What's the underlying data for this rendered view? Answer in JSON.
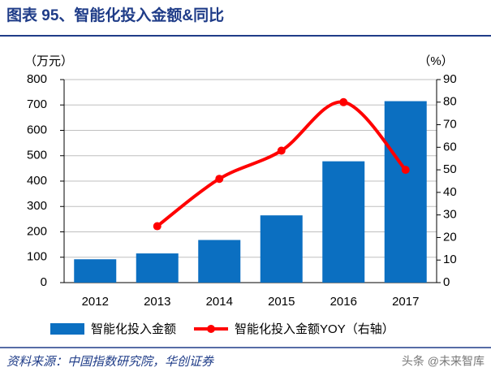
{
  "chart_data": {
    "type": "bar-line",
    "title": "图表 95、智能化投入金额&同比",
    "y_label": "（万元）",
    "y2_label": "（%）",
    "categories": [
      "2012",
      "2013",
      "2014",
      "2015",
      "2016",
      "2017"
    ],
    "series": [
      {
        "name": "智能化投入金额",
        "type": "bar",
        "color": "#0b6fc1",
        "values": [
          92,
          115,
          168,
          265,
          478,
          715
        ]
      },
      {
        "name": "智能化投入金额YOY（右轴）",
        "type": "line",
        "axis": "y2",
        "color": "#ff0000",
        "values": [
          null,
          25,
          46,
          58.5,
          80,
          50
        ]
      }
    ],
    "ylim": [
      0,
      800
    ],
    "yticks": [
      0,
      100,
      200,
      300,
      400,
      500,
      600,
      700,
      800
    ],
    "y2lim": [
      0,
      90
    ],
    "y2ticks": [
      0,
      10,
      20,
      30,
      40,
      50,
      60,
      70,
      80,
      90
    ],
    "grid": true,
    "source": "资料来源：中国指数研究院，华创证券",
    "watermark": "头条 @未来智库"
  }
}
